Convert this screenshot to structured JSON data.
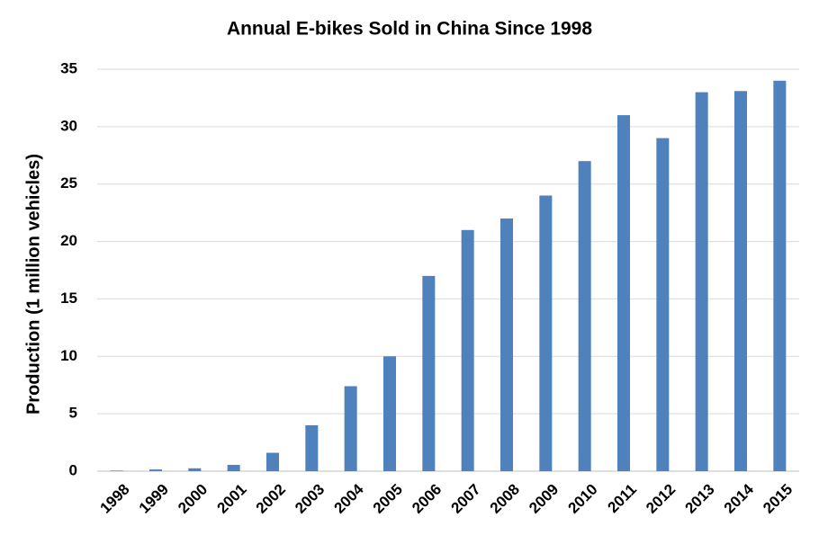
{
  "chart_data": {
    "type": "bar",
    "title": "Annual E-bikes Sold in China Since 1998",
    "y_label": "Production (1 million vehicles)",
    "categories": [
      "1998",
      "1999",
      "2000",
      "2001",
      "2002",
      "2003",
      "2004",
      "2005",
      "2006",
      "2007",
      "2008",
      "2009",
      "2010",
      "2011",
      "2012",
      "2013",
      "2014",
      "2015"
    ],
    "values": [
      0.05,
      0.15,
      0.25,
      0.55,
      1.6,
      4,
      7.4,
      10,
      17,
      21,
      22,
      24,
      27,
      31,
      29,
      33,
      33.1,
      34
    ],
    "color": "#4f81bd",
    "ylim": [
      0,
      35
    ],
    "yticks": [
      0,
      5,
      10,
      15,
      20,
      25,
      30,
      35
    ],
    "grid": true
  }
}
